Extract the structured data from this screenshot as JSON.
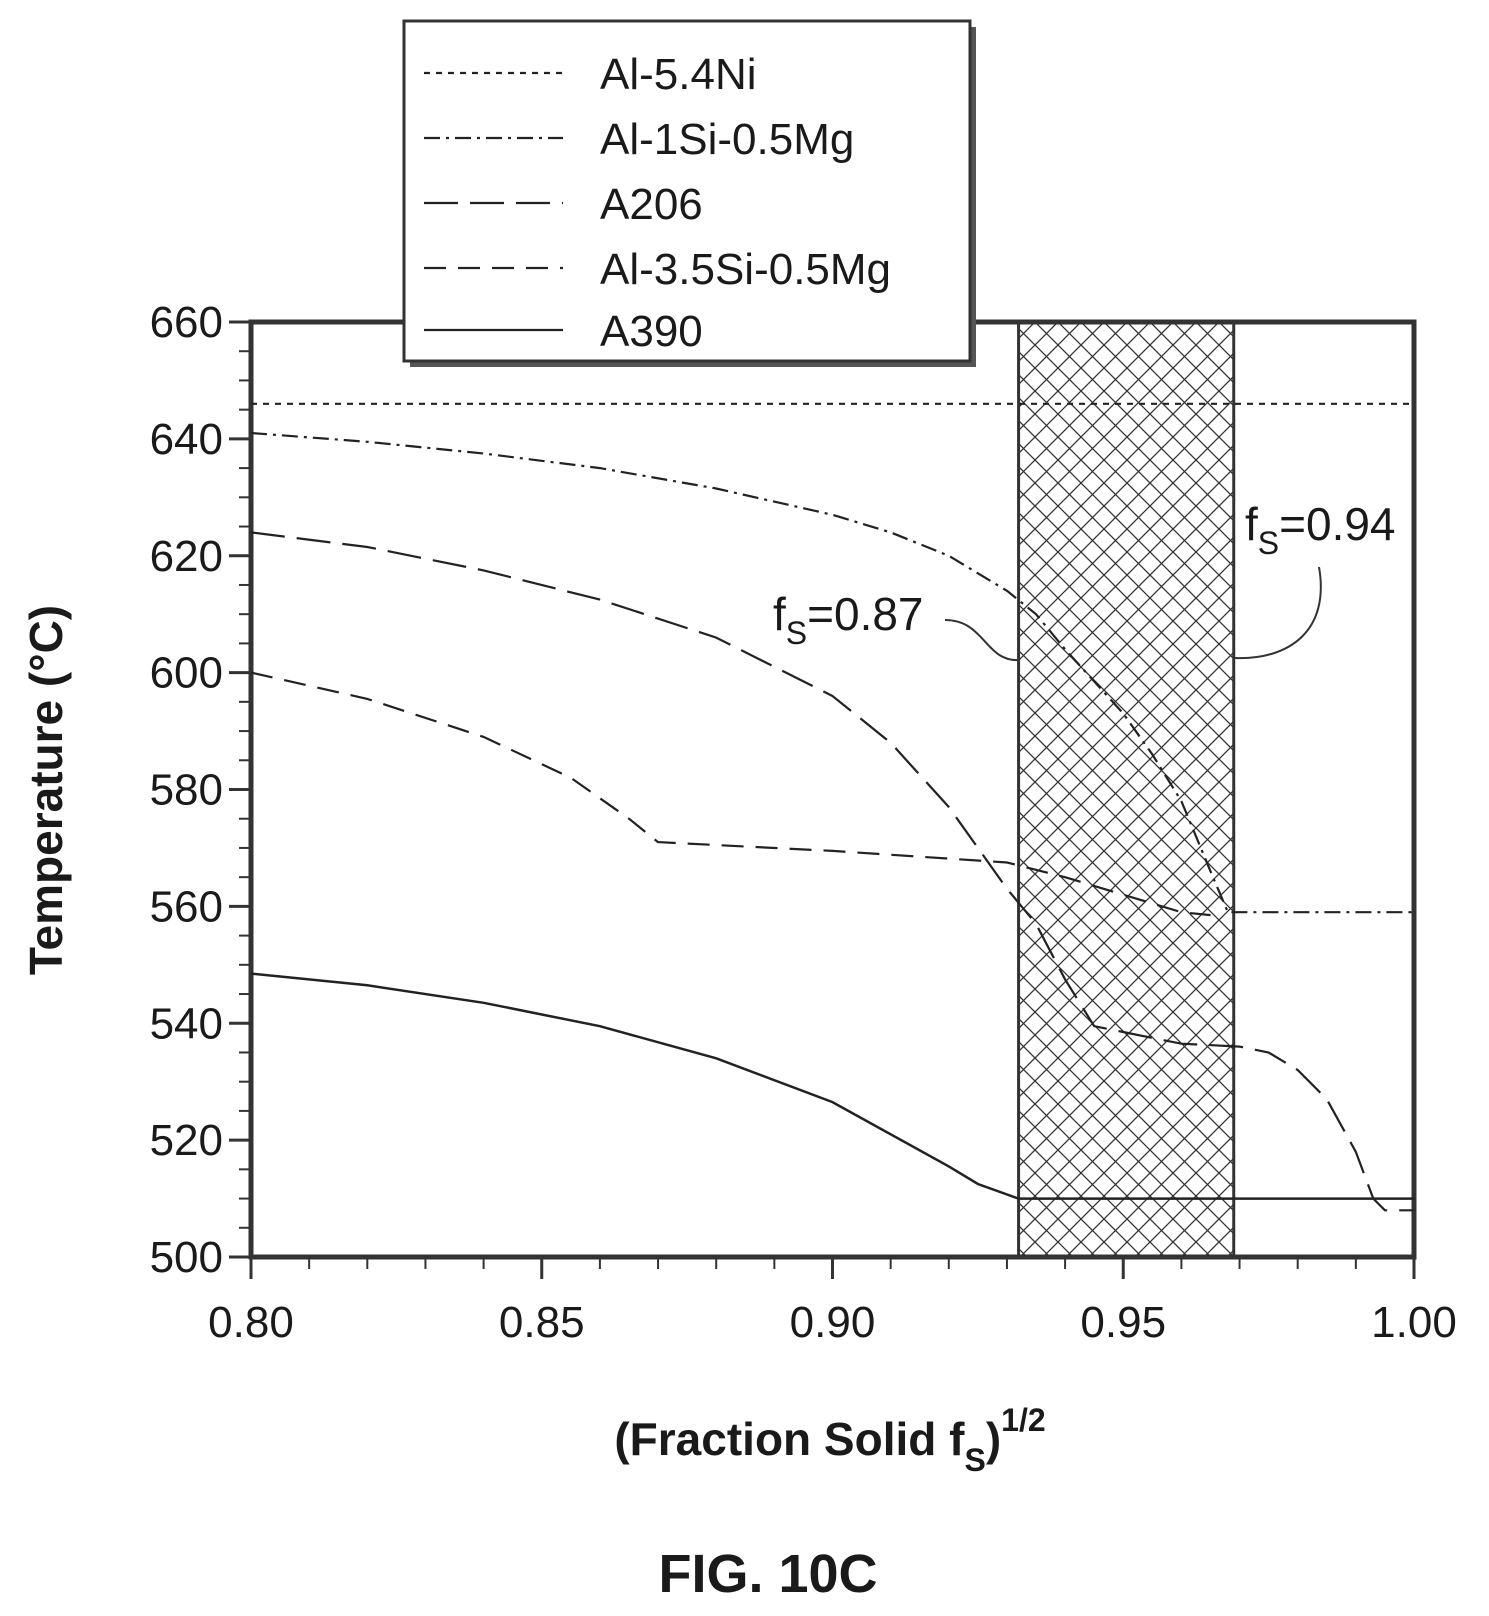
{
  "chart_data": {
    "type": "line",
    "xlabel": {
      "main": "(Fraction Solid f",
      "sub": "S",
      "close": ")",
      "sup": "1/2"
    },
    "ylabel": "Temperature (°C)",
    "xlim": [
      0.8,
      1.0
    ],
    "ylim": [
      500,
      660
    ],
    "x_ticks": [
      "0.80",
      "0.85",
      "0.90",
      "0.95",
      "1.00"
    ],
    "y_ticks": [
      "500",
      "520",
      "540",
      "560",
      "580",
      "600",
      "620",
      "640",
      "660"
    ],
    "grid": false,
    "legend_position": "top-left, above plot",
    "series": [
      {
        "name": "Al-5.4Ni",
        "style": "dotted-dash",
        "points": [
          [
            0.8,
            646
          ],
          [
            1.0,
            646
          ]
        ]
      },
      {
        "name": "Al-1Si-0.5Mg",
        "style": "dash-dot",
        "points": [
          [
            0.8,
            641
          ],
          [
            0.82,
            639.5
          ],
          [
            0.84,
            637.5
          ],
          [
            0.86,
            635
          ],
          [
            0.88,
            631.5
          ],
          [
            0.9,
            627
          ],
          [
            0.91,
            624
          ],
          [
            0.92,
            620
          ],
          [
            0.93,
            614
          ],
          [
            0.935,
            610
          ],
          [
            0.94,
            604
          ],
          [
            0.945,
            598.5
          ],
          [
            0.95,
            593
          ],
          [
            0.955,
            586
          ],
          [
            0.96,
            578
          ],
          [
            0.965,
            566
          ],
          [
            0.968,
            559
          ],
          [
            1.0,
            559
          ]
        ]
      },
      {
        "name": "A206",
        "style": "long-dash",
        "points": [
          [
            0.8,
            624
          ],
          [
            0.82,
            621.5
          ],
          [
            0.84,
            617.5
          ],
          [
            0.86,
            612.5
          ],
          [
            0.88,
            606
          ],
          [
            0.9,
            596
          ],
          [
            0.91,
            588
          ],
          [
            0.92,
            577
          ],
          [
            0.925,
            570
          ],
          [
            0.93,
            563
          ],
          [
            0.935,
            557
          ],
          [
            0.94,
            547.5
          ],
          [
            0.945,
            539.5
          ],
          [
            0.95,
            538.5
          ],
          [
            0.955,
            537.5
          ],
          [
            0.96,
            536.5
          ],
          [
            0.97,
            536
          ],
          [
            0.975,
            535
          ],
          [
            0.98,
            532
          ],
          [
            0.985,
            527
          ],
          [
            0.99,
            518
          ],
          [
            0.993,
            510
          ],
          [
            0.995,
            508
          ],
          [
            1.0,
            508
          ]
        ]
      },
      {
        "name": "Al-3.5Si-0.5Mg",
        "style": "medium-dash",
        "points": [
          [
            0.8,
            600
          ],
          [
            0.82,
            595.5
          ],
          [
            0.84,
            589
          ],
          [
            0.855,
            582
          ],
          [
            0.865,
            575
          ],
          [
            0.87,
            571
          ],
          [
            0.9,
            569.5
          ],
          [
            0.93,
            567.5
          ],
          [
            0.94,
            565
          ],
          [
            0.95,
            562
          ],
          [
            0.96,
            559
          ],
          [
            0.965,
            558.5
          ]
        ]
      },
      {
        "name": "A390",
        "style": "solid",
        "points": [
          [
            0.8,
            548.5
          ],
          [
            0.82,
            546.5
          ],
          [
            0.84,
            543.5
          ],
          [
            0.86,
            539.5
          ],
          [
            0.88,
            534
          ],
          [
            0.9,
            526.5
          ],
          [
            0.91,
            521
          ],
          [
            0.92,
            515.5
          ],
          [
            0.925,
            512.5
          ],
          [
            0.932,
            510
          ],
          [
            0.97,
            510
          ],
          [
            1.0,
            510
          ]
        ]
      }
    ],
    "shaded_region": {
      "x_from": 0.932,
      "x_to": 0.969,
      "pattern": "crosshatch"
    },
    "annotations": [
      {
        "base": "f",
        "sub": "S",
        "text": "=0.87"
      },
      {
        "base": "f",
        "sub": "S",
        "text": "=0.94"
      }
    ]
  },
  "caption": "FIG. 10C"
}
